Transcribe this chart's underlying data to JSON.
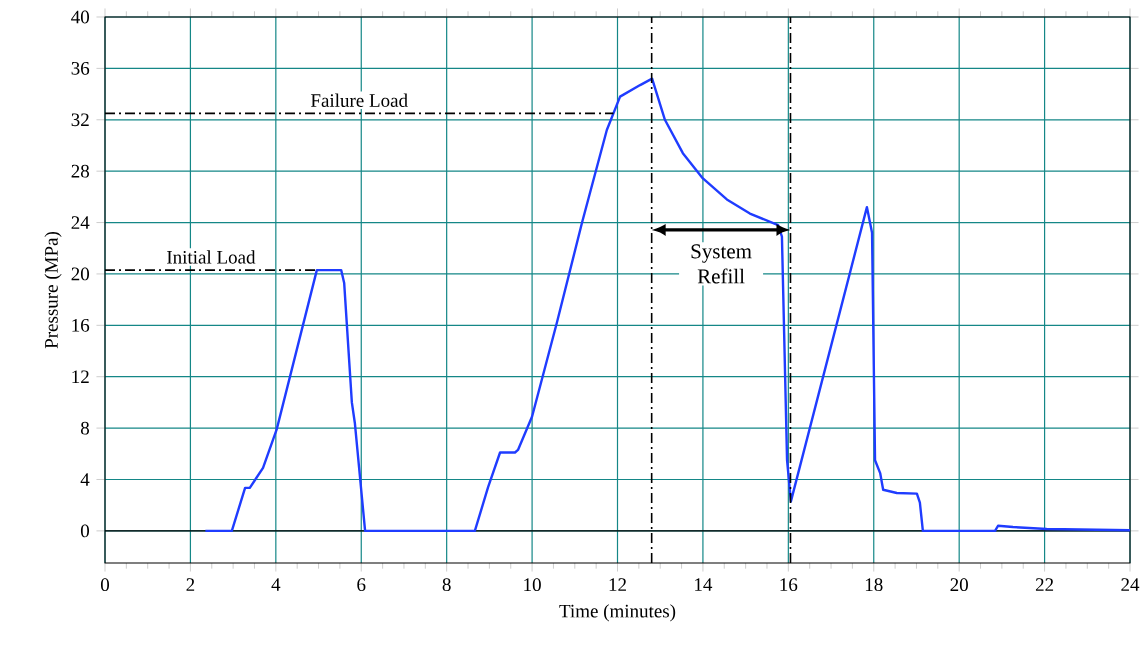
{
  "chart_data": {
    "type": "line",
    "xlabel": "Time (minutes)",
    "ylabel": "Pressure (MPa)",
    "xlim": [
      0,
      24
    ],
    "ylim": [
      -2.5,
      40
    ],
    "xticks": [
      0,
      2,
      4,
      6,
      8,
      10,
      12,
      14,
      16,
      18,
      20,
      22,
      24
    ],
    "yticks": [
      0,
      4,
      8,
      12,
      16,
      20,
      24,
      28,
      32,
      36,
      40
    ],
    "grid": true,
    "series": [
      {
        "color": "#1f3cff",
        "x": [
          2.35,
          2.97,
          3.28,
          3.39,
          3.7,
          4.02,
          4.96,
          5.03,
          5.53,
          5.6,
          5.78,
          5.85,
          6.09,
          7.2,
          8.66,
          8.97,
          9.25,
          9.6,
          9.67,
          10.0,
          10.58,
          11.17,
          11.75,
          12.06,
          12.53,
          12.81,
          13.11,
          13.53,
          13.98,
          14.56,
          15.1,
          15.76,
          15.85,
          15.97,
          16.06,
          17.84,
          17.96,
          18.03,
          18.15,
          18.22,
          18.54,
          19.01,
          19.08,
          19.15,
          20.84,
          20.91,
          21.26,
          22.05,
          24.0
        ],
        "values": [
          0,
          0,
          3.35,
          3.35,
          4.9,
          7.9,
          20.3,
          20.3,
          20.3,
          19.3,
          10.0,
          8.4,
          0,
          0,
          0,
          3.4,
          6.1,
          6.1,
          6.3,
          8.9,
          16.2,
          24.0,
          31.2,
          33.8,
          34.7,
          35.2,
          32.0,
          29.4,
          27.5,
          25.8,
          24.7,
          23.8,
          22.9,
          5.5,
          2.3,
          25.2,
          23.2,
          5.5,
          4.5,
          3.2,
          2.95,
          2.9,
          2.2,
          0,
          0,
          0.4,
          0.3,
          0.15,
          0.05
        ]
      }
    ],
    "ref_lines": [
      {
        "axis": "y",
        "value": 32.5,
        "label": "Failure Load",
        "color": "#000000"
      },
      {
        "axis": "y",
        "value": 20.3,
        "label": "Initial Load",
        "color": "#000000"
      },
      {
        "axis": "x",
        "value": 12.8,
        "color": "#000000"
      },
      {
        "axis": "x",
        "value": 16.05,
        "color": "#000000"
      }
    ],
    "annotations": [
      "System Refill"
    ]
  }
}
